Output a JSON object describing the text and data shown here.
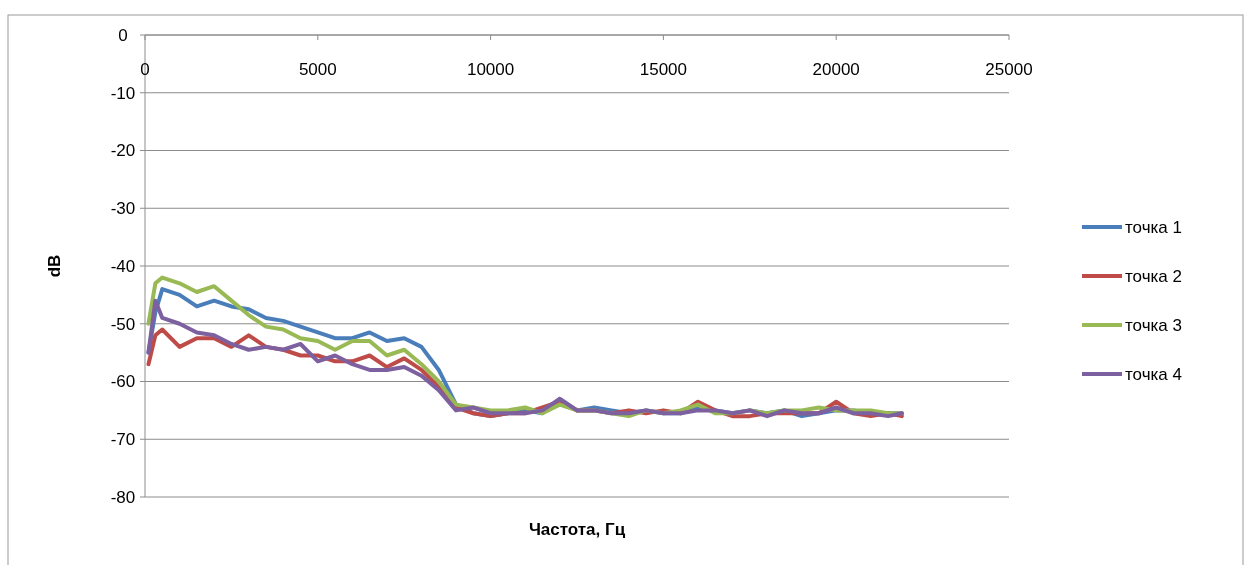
{
  "chart_data": {
    "type": "line",
    "xlabel": "Частота, Гц",
    "ylabel": "dB",
    "x": [
      100,
      300,
      500,
      1000,
      1500,
      2000,
      2500,
      3000,
      3500,
      4000,
      4500,
      5000,
      5500,
      6000,
      6500,
      7000,
      7500,
      8000,
      8500,
      9000,
      9500,
      10000,
      10500,
      11000,
      11500,
      12000,
      12500,
      13000,
      13500,
      14000,
      14500,
      15000,
      15500,
      16000,
      16500,
      17000,
      17500,
      18000,
      18500,
      19000,
      19500,
      20000,
      20500,
      21000,
      21500,
      21900
    ],
    "series": [
      {
        "name": "точка 1",
        "color": "#4a7ebb",
        "values": [
          -55,
          -48,
          -44,
          -45,
          -47,
          -46,
          -47,
          -47.5,
          -49,
          -49.5,
          -50.5,
          -51.5,
          -52.5,
          -52.5,
          -51.5,
          -53,
          -52.5,
          -54,
          -58,
          -64,
          -65.5,
          -66,
          -65.5,
          -65,
          -65.5,
          -63,
          -65,
          -64.5,
          -65,
          -65.5,
          -65,
          -65.5,
          -65.5,
          -64.5,
          -65,
          -65.5,
          -65,
          -65.5,
          -65,
          -66,
          -65.5,
          -65,
          -65,
          -65.5,
          -65.5,
          -65.5
        ]
      },
      {
        "name": "точка 2",
        "color": "#be4b48",
        "values": [
          -57,
          -52,
          -51,
          -54,
          -52.5,
          -52.5,
          -54,
          -52,
          -54,
          -54.5,
          -55.5,
          -55.5,
          -56.5,
          -56.5,
          -55.5,
          -57.5,
          -56,
          -58,
          -61,
          -64.5,
          -65.5,
          -66,
          -65.5,
          -65.5,
          -64.5,
          -63.5,
          -65,
          -65,
          -65.5,
          -65,
          -65.5,
          -65,
          -65.5,
          -63.5,
          -65,
          -66,
          -66,
          -65.5,
          -65.5,
          -65.5,
          -65.5,
          -63.5,
          -65.5,
          -66,
          -65.5,
          -66
        ]
      },
      {
        "name": "точка 3",
        "color": "#98b954",
        "values": [
          -50,
          -43,
          -42,
          -43,
          -44.5,
          -43.5,
          -46,
          -48.5,
          -50.5,
          -51,
          -52.5,
          -53,
          -54.5,
          -53,
          -53,
          -55.5,
          -54.5,
          -57,
          -60,
          -64,
          -64.5,
          -65,
          -65,
          -64.5,
          -65.5,
          -64,
          -65,
          -65,
          -65.5,
          -66,
          -65,
          -65.5,
          -65,
          -64,
          -65.5,
          -65.5,
          -65,
          -65.5,
          -65,
          -65,
          -64.5,
          -65,
          -65,
          -65,
          -65.5,
          -65.5
        ]
      },
      {
        "name": "точка 4",
        "color": "#7d60a0",
        "values": [
          -55,
          -46,
          -49,
          -50,
          -51.5,
          -52,
          -53.5,
          -54.5,
          -54,
          -54.5,
          -53.5,
          -56.5,
          -55.5,
          -57,
          -58,
          -58,
          -57.5,
          -59,
          -61.5,
          -65,
          -64.5,
          -65.5,
          -65.5,
          -65.5,
          -65,
          -63,
          -65,
          -65,
          -65.5,
          -65.5,
          -65,
          -65.5,
          -65.5,
          -65,
          -65,
          -65.5,
          -65,
          -66,
          -65,
          -65.5,
          -65.5,
          -64.5,
          -65.5,
          -65.5,
          -66,
          -65.5
        ]
      }
    ],
    "xlim": [
      0,
      25000
    ],
    "xticks": [
      0,
      5000,
      10000,
      15000,
      20000,
      25000
    ],
    "ylim": [
      -80,
      0
    ],
    "yticks": [
      -80,
      -70,
      -60,
      -50,
      -40,
      -30,
      -20,
      -10,
      0
    ],
    "grid": "y",
    "legend": "right",
    "marker": "none",
    "line_style": "solid"
  }
}
